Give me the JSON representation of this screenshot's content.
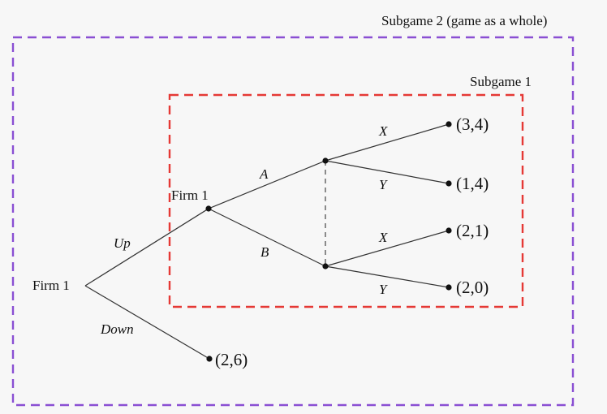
{
  "subgames": {
    "outer_label": "Subgame 2 (game as a whole)",
    "outer_color": "#8a4fd3",
    "inner_label": "Subgame 1",
    "inner_color": "#e53935"
  },
  "tree": {
    "root_player": "Firm 1",
    "second_player": "Firm 1",
    "line_color": "#333333",
    "info_set_color": "#444444",
    "actions": {
      "up": "Up",
      "down": "Down",
      "a": "A",
      "b": "B",
      "x_top": "X",
      "y_top": "Y",
      "x_bottom": "X",
      "y_bottom": "Y"
    },
    "payoffs": {
      "ax": "(3,4)",
      "ay": "(1,4)",
      "bx": "(2,1)",
      "by": "(2,0)",
      "down": "(2,6)"
    }
  }
}
